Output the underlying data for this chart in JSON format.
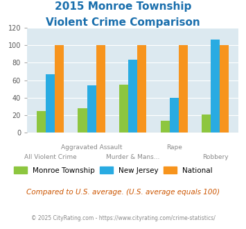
{
  "title_line1": "2015 Monroe Township",
  "title_line2": "Violent Crime Comparison",
  "categories": [
    "All Violent Crime",
    "Aggravated Assault",
    "Murder & Mans...",
    "Rape",
    "Robbery"
  ],
  "series": {
    "Monroe Township": [
      25,
      28,
      55,
      14,
      21
    ],
    "New Jersey": [
      67,
      54,
      83,
      40,
      106
    ],
    "National": [
      100,
      100,
      100,
      100,
      100
    ]
  },
  "colors": {
    "Monroe Township": "#8dc63f",
    "New Jersey": "#29abe2",
    "National": "#f7941d"
  },
  "ylim": [
    0,
    120
  ],
  "yticks": [
    0,
    20,
    40,
    60,
    80,
    100,
    120
  ],
  "bar_width": 0.22,
  "top_labels": [
    "",
    "Aggravated Assault",
    "",
    "Rape",
    ""
  ],
  "bottom_labels": [
    "All Violent Crime",
    "",
    "Murder & Mans...",
    "",
    "Robbery"
  ],
  "footnote1": "Compared to U.S. average. (U.S. average equals 100)",
  "footnote2": "© 2025 CityRating.com - https://www.cityrating.com/crime-statistics/",
  "title_color": "#1a6fad",
  "footnote1_color": "#cc5500",
  "footnote2_color": "#888888",
  "plot_bg_color": "#dce9f0",
  "legend_labels": [
    "Monroe Township",
    "New Jersey",
    "National"
  ]
}
